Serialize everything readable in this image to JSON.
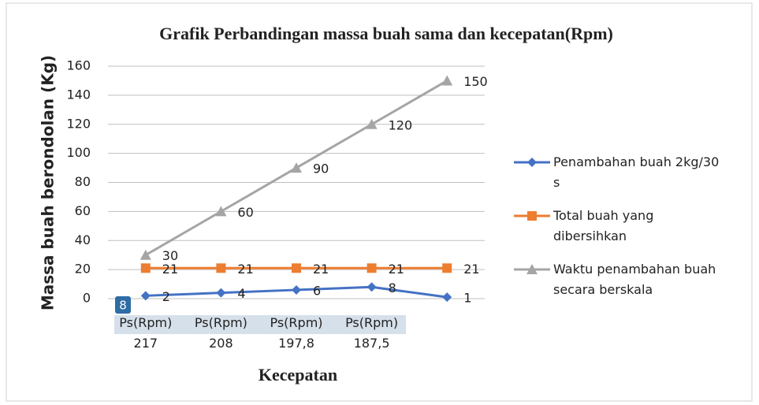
{
  "chart_data": {
    "type": "line",
    "title": "Grafik  Perbandingan massa buah sama dan kecepatan(Rpm)",
    "x_label": "Kecepatan",
    "y_label": "Massa buah berondolan (Kg)",
    "badge": "8",
    "categories": [
      "Ps(Rpm) 217",
      "Ps(Rpm) 208",
      "Ps(Rpm) 197,8",
      "Ps(Rpm) 187,5",
      null
    ],
    "series": [
      {
        "name": "Penambahan buah 2kg/30 s",
        "color": "#4472c4",
        "marker": "diamond",
        "values": [
          2,
          4,
          6,
          8,
          1
        ]
      },
      {
        "name": "Total buah yang dibersihkan",
        "color": "#ed7d31",
        "marker": "square",
        "values": [
          21,
          21,
          21,
          21,
          21
        ]
      },
      {
        "name": "Waktu penambahan buah secara berskala",
        "color": "#a5a5a5",
        "marker": "triangle",
        "values": [
          30,
          60,
          90,
          120,
          150
        ]
      }
    ],
    "ylim": [
      0,
      160
    ],
    "yticks": [
      0,
      20,
      40,
      60,
      80,
      100,
      120,
      140,
      160
    ],
    "grid": true,
    "legend": "right",
    "data_labels": true
  }
}
